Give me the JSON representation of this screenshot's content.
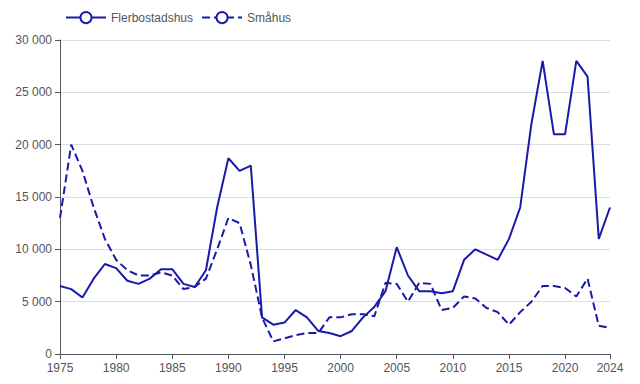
{
  "chart_data": {
    "type": "line",
    "x": [
      1975,
      1976,
      1977,
      1978,
      1979,
      1980,
      1981,
      1982,
      1983,
      1984,
      1985,
      1986,
      1987,
      1988,
      1989,
      1990,
      1991,
      1992,
      1993,
      1994,
      1995,
      1996,
      1997,
      1998,
      1999,
      2000,
      2001,
      2002,
      2003,
      2004,
      2005,
      2006,
      2007,
      2008,
      2009,
      2010,
      2011,
      2012,
      2013,
      2014,
      2015,
      2016,
      2017,
      2018,
      2019,
      2020,
      2021,
      2022,
      2023,
      2024
    ],
    "series": [
      {
        "name": "Flerbostadshus",
        "color": "#1a1aaa",
        "line_style": "solid",
        "values": [
          6500,
          6200,
          5400,
          7200,
          8600,
          8200,
          7000,
          6700,
          7200,
          8100,
          8100,
          6700,
          6400,
          8000,
          14000,
          18700,
          17500,
          18000,
          3500,
          2800,
          3000,
          4200,
          3500,
          2200,
          2000,
          1700,
          2200,
          3500,
          4500,
          6000,
          10200,
          7500,
          6000,
          6000,
          5800,
          6000,
          9000,
          10000,
          9500,
          9000,
          11000,
          14000,
          22000,
          28000,
          21000,
          21000,
          28000,
          26500,
          11000,
          14000
        ]
      },
      {
        "name": "Småhus",
        "color": "#1a1aaa",
        "line_style": "dashed",
        "values": [
          13000,
          20000,
          17500,
          14000,
          11000,
          9000,
          8000,
          7500,
          7500,
          7800,
          7500,
          6200,
          6400,
          7200,
          10000,
          13000,
          12500,
          8500,
          3500,
          1200,
          1500,
          1800,
          2000,
          2000,
          3500,
          3500,
          3800,
          3800,
          3600,
          6800,
          6700,
          5000,
          6800,
          6700,
          4200,
          4400,
          5500,
          5300,
          4400,
          4000,
          2800,
          4000,
          5000,
          6500,
          6500,
          6300,
          5500,
          7200,
          2700,
          2500
        ]
      }
    ],
    "xlim": [
      1975,
      2024
    ],
    "xticks": [
      1975,
      1980,
      1985,
      1990,
      1995,
      2000,
      2005,
      2010,
      2015,
      2020,
      2024
    ],
    "ylim": [
      0,
      30000
    ],
    "yticks": [
      0,
      {
        "value": 5000,
        "label": "5 000"
      },
      {
        "value": 10000,
        "label": "10 000"
      },
      {
        "value": 15000,
        "label": "15 000"
      },
      {
        "value": 20000,
        "label": "20 000"
      },
      {
        "value": 25000,
        "label": "25 000"
      },
      {
        "value": 30000,
        "label": "30 000"
      }
    ],
    "grid": true,
    "legend": "upper left"
  }
}
